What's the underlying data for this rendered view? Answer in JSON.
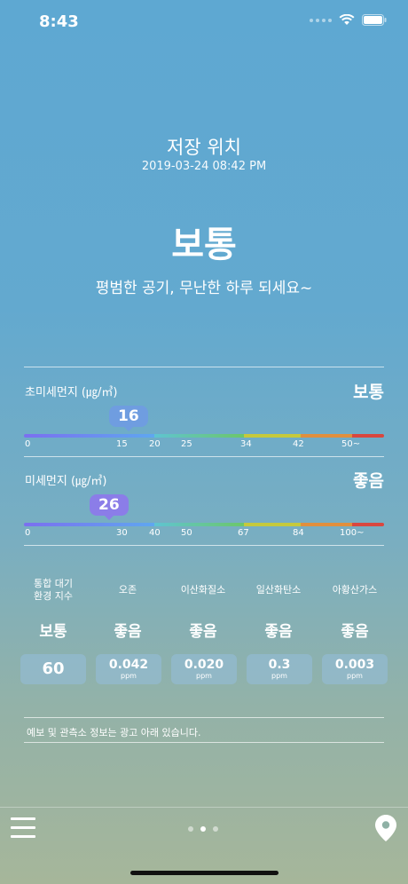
{
  "status_bar": {
    "time": "8:43"
  },
  "header": {
    "location": "저장 위치",
    "datetime": "2019-03-24 08:42 PM",
    "status": "보통",
    "message": "평범한 공기, 무난한 하루 되세요~"
  },
  "pm25": {
    "label": "초미세먼지 (㎍/㎥)",
    "grade": "보통",
    "value": "16",
    "ticks": [
      "0",
      "15",
      "20",
      "25",
      "34",
      "42",
      "50~"
    ]
  },
  "pm10": {
    "label": "미세먼지 (㎍/㎥)",
    "grade": "좋음",
    "value": "26",
    "ticks": [
      "0",
      "30",
      "40",
      "50",
      "67",
      "84",
      "100~"
    ]
  },
  "pollutants": [
    {
      "title_line1": "통합 대기",
      "title_line2": "환경 지수",
      "grade": "보통",
      "value": "60",
      "unit": ""
    },
    {
      "title_line1": "오존",
      "title_line2": "",
      "grade": "좋음",
      "value": "0.042",
      "unit": "ppm"
    },
    {
      "title_line1": "이산화질소",
      "title_line2": "",
      "grade": "좋음",
      "value": "0.020",
      "unit": "ppm"
    },
    {
      "title_line1": "일산화탄소",
      "title_line2": "",
      "grade": "좋음",
      "value": "0.3",
      "unit": "ppm"
    },
    {
      "title_line1": "아황산가스",
      "title_line2": "",
      "grade": "좋음",
      "value": "0.003",
      "unit": "ppm"
    }
  ],
  "notice": "예보 및 관측소 정보는 광고 아래 있습니다.",
  "scale_colors": {
    "very_good": "#7b6ff0",
    "good": "#5fa7f0",
    "moderate": "#6cc76a",
    "caution": "#c5c93c",
    "bad": "#e08f3d",
    "very_bad": "#d9473f"
  },
  "icons": {
    "menu": "hamburger-menu-icon",
    "location": "location-pin-icon",
    "wifi": "wifi-icon",
    "battery": "battery-icon"
  }
}
